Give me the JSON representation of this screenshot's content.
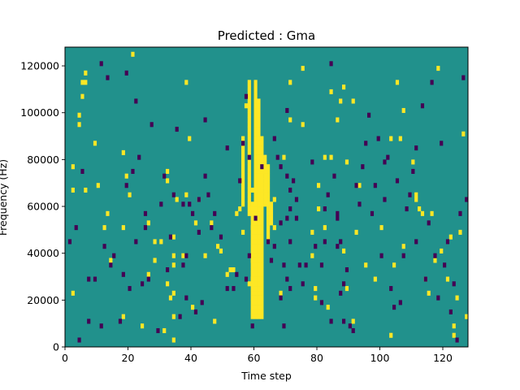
{
  "chart_data": {
    "type": "heatmap",
    "title": "Predicted : Gma",
    "xlabel": "Time step",
    "ylabel": "Frequency (Hz)",
    "xlim": [
      0,
      128
    ],
    "ylim": [
      0,
      128000
    ],
    "x_ticks": [
      0,
      20,
      40,
      60,
      80,
      100,
      120
    ],
    "y_ticks": [
      0,
      20000,
      40000,
      60000,
      80000,
      100000,
      120000
    ],
    "grid": false,
    "legend": "none",
    "n_time_steps": 128,
    "n_freq_bins": 64,
    "colors": {
      "background": "#21918c",
      "high": "#fde725",
      "low": "#440154"
    },
    "high_cells": [
      [
        2,
        11
      ],
      [
        2,
        33
      ],
      [
        2,
        38
      ],
      [
        4,
        47
      ],
      [
        4,
        49
      ],
      [
        5,
        56
      ],
      [
        5,
        53
      ],
      [
        6,
        56
      ],
      [
        6,
        58
      ],
      [
        6,
        33
      ],
      [
        9,
        43
      ],
      [
        10,
        34
      ],
      [
        12,
        25
      ],
      [
        13,
        28
      ],
      [
        14,
        18
      ],
      [
        18,
        41
      ],
      [
        18,
        25
      ],
      [
        18,
        6
      ],
      [
        19,
        36
      ],
      [
        20,
        32
      ],
      [
        21,
        62
      ],
      [
        24,
        4
      ],
      [
        26,
        26
      ],
      [
        26,
        15
      ],
      [
        28,
        18
      ],
      [
        28,
        22
      ],
      [
        30,
        22
      ],
      [
        31,
        3
      ],
      [
        32,
        13
      ],
      [
        32,
        35
      ],
      [
        32,
        37
      ],
      [
        33,
        10
      ],
      [
        34,
        17
      ],
      [
        34,
        19
      ],
      [
        34,
        11
      ],
      [
        34,
        6
      ],
      [
        34,
        23
      ],
      [
        34,
        1
      ],
      [
        35,
        31
      ],
      [
        37,
        19
      ],
      [
        38,
        56
      ],
      [
        38,
        32
      ],
      [
        39,
        44
      ],
      [
        40,
        8
      ],
      [
        41,
        26
      ],
      [
        42,
        31
      ],
      [
        44,
        19
      ],
      [
        46,
        26
      ],
      [
        47,
        5
      ],
      [
        48,
        21
      ],
      [
        49,
        20
      ],
      [
        51,
        15
      ],
      [
        52,
        16
      ],
      [
        53,
        16
      ],
      [
        54,
        28
      ],
      [
        55,
        29
      ],
      [
        56,
        24
      ],
      [
        57,
        51
      ],
      [
        58,
        13
      ],
      [
        59,
        14
      ],
      [
        59,
        18
      ],
      [
        59,
        25
      ],
      [
        59,
        29
      ],
      [
        59,
        33
      ],
      [
        60,
        30
      ],
      [
        60,
        35
      ],
      [
        60,
        39
      ],
      [
        60,
        43
      ],
      [
        61,
        43
      ],
      [
        62,
        37
      ],
      [
        64,
        25
      ],
      [
        66,
        25
      ],
      [
        66,
        31
      ],
      [
        68,
        11
      ],
      [
        69,
        40
      ],
      [
        71,
        48
      ],
      [
        71,
        56
      ],
      [
        75,
        47
      ],
      [
        75,
        59
      ],
      [
        75,
        64
      ],
      [
        78,
        24
      ],
      [
        78,
        19
      ],
      [
        79,
        12
      ],
      [
        79,
        10
      ],
      [
        80,
        29
      ],
      [
        80,
        34
      ],
      [
        82,
        25
      ],
      [
        82,
        40
      ],
      [
        83,
        8
      ],
      [
        84,
        40
      ],
      [
        84,
        54
      ],
      [
        86,
        48
      ],
      [
        87,
        52
      ],
      [
        88,
        55
      ],
      [
        88,
        20
      ],
      [
        89,
        39
      ],
      [
        89,
        12
      ],
      [
        91,
        52
      ],
      [
        91,
        5
      ],
      [
        92,
        24
      ],
      [
        93,
        34
      ],
      [
        95,
        17
      ],
      [
        98,
        14
      ],
      [
        100,
        25
      ],
      [
        103,
        2
      ],
      [
        103,
        44
      ],
      [
        104,
        17
      ],
      [
        105,
        56
      ],
      [
        106,
        44
      ],
      [
        107,
        21
      ],
      [
        107,
        50
      ],
      [
        110,
        39
      ],
      [
        111,
        31
      ],
      [
        111,
        32
      ],
      [
        112,
        29
      ],
      [
        113,
        28
      ],
      [
        114,
        14
      ],
      [
        115,
        11
      ],
      [
        116,
        28
      ],
      [
        117,
        18
      ],
      [
        118,
        59
      ],
      [
        119,
        20
      ],
      [
        121,
        14
      ],
      [
        122,
        23
      ],
      [
        123,
        2
      ],
      [
        123,
        4
      ],
      [
        124,
        10
      ],
      [
        125,
        24
      ],
      [
        126,
        45
      ],
      [
        127,
        64
      ],
      [
        127,
        6
      ]
    ],
    "high_columns": [
      {
        "x": 56,
        "y_from": 30,
        "y_to": 44
      },
      {
        "x": 58,
        "y_from": 28,
        "y_to": 56
      },
      {
        "x": 59,
        "y_from": 6,
        "y_to": 30
      },
      {
        "x": 60,
        "y_from": 6,
        "y_to": 56
      },
      {
        "x": 61,
        "y_from": 6,
        "y_to": 52
      },
      {
        "x": 62,
        "y_from": 6,
        "y_to": 44
      },
      {
        "x": 63,
        "y_from": 30,
        "y_to": 40
      },
      {
        "x": 64,
        "y_from": 22,
        "y_to": 38
      },
      {
        "x": 65,
        "y_from": 26,
        "y_to": 30
      }
    ],
    "low_cells": [
      [
        1,
        22
      ],
      [
        3,
        25
      ],
      [
        4,
        1
      ],
      [
        5,
        37
      ],
      [
        7,
        5
      ],
      [
        7,
        14
      ],
      [
        9,
        14
      ],
      [
        11,
        60
      ],
      [
        11,
        4
      ],
      [
        12,
        21
      ],
      [
        13,
        57
      ],
      [
        14,
        17
      ],
      [
        15,
        19
      ],
      [
        17,
        5
      ],
      [
        18,
        15
      ],
      [
        19,
        34
      ],
      [
        19,
        58
      ],
      [
        20,
        12
      ],
      [
        21,
        37
      ],
      [
        22,
        52
      ],
      [
        22,
        22
      ],
      [
        23,
        40
      ],
      [
        24,
        13
      ],
      [
        25,
        25
      ],
      [
        25,
        28
      ],
      [
        26,
        14
      ],
      [
        27,
        47
      ],
      [
        29,
        3
      ],
      [
        30,
        30
      ],
      [
        31,
        36
      ],
      [
        32,
        16
      ],
      [
        33,
        23
      ],
      [
        34,
        32
      ],
      [
        35,
        46
      ],
      [
        36,
        6
      ],
      [
        37,
        17
      ],
      [
        37,
        30
      ],
      [
        38,
        10
      ],
      [
        38,
        19
      ],
      [
        39,
        30
      ],
      [
        40,
        28
      ],
      [
        41,
        7
      ],
      [
        42,
        31
      ],
      [
        42,
        24
      ],
      [
        43,
        9
      ],
      [
        44,
        36
      ],
      [
        44,
        48
      ],
      [
        45,
        32
      ],
      [
        46,
        25
      ],
      [
        47,
        28
      ],
      [
        49,
        23
      ],
      [
        51,
        12
      ],
      [
        51,
        42
      ],
      [
        53,
        12
      ],
      [
        54,
        15
      ],
      [
        55,
        35
      ],
      [
        56,
        43
      ],
      [
        57,
        53
      ],
      [
        57,
        14
      ],
      [
        58,
        19
      ],
      [
        58,
        40
      ],
      [
        59,
        4
      ],
      [
        60,
        27
      ],
      [
        62,
        38
      ],
      [
        64,
        22
      ],
      [
        65,
        18
      ],
      [
        66,
        21
      ],
      [
        66,
        44
      ],
      [
        67,
        40
      ],
      [
        68,
        10
      ],
      [
        68,
        26
      ],
      [
        68,
        38
      ],
      [
        69,
        4
      ],
      [
        69,
        17
      ],
      [
        70,
        14
      ],
      [
        70,
        27
      ],
      [
        70,
        36
      ],
      [
        70,
        50
      ],
      [
        71,
        22
      ],
      [
        71,
        29
      ],
      [
        71,
        33
      ],
      [
        71,
        12
      ],
      [
        72,
        35
      ],
      [
        73,
        31
      ],
      [
        73,
        27
      ],
      [
        74,
        17
      ],
      [
        75,
        13
      ],
      [
        76,
        17
      ],
      [
        78,
        39
      ],
      [
        79,
        21
      ],
      [
        81,
        9
      ],
      [
        81,
        17
      ],
      [
        82,
        22
      ],
      [
        82,
        29
      ],
      [
        83,
        32
      ],
      [
        84,
        5
      ],
      [
        84,
        60
      ],
      [
        85,
        36
      ],
      [
        86,
        27
      ],
      [
        86,
        28
      ],
      [
        86,
        21
      ],
      [
        87,
        22
      ],
      [
        87,
        11
      ],
      [
        88,
        13
      ],
      [
        88,
        5
      ],
      [
        89,
        16
      ],
      [
        90,
        4
      ],
      [
        91,
        3
      ],
      [
        92,
        34
      ],
      [
        93,
        30
      ],
      [
        94,
        38
      ],
      [
        95,
        43
      ],
      [
        96,
        49
      ],
      [
        97,
        28
      ],
      [
        98,
        34
      ],
      [
        99,
        44
      ],
      [
        100,
        19
      ],
      [
        101,
        31
      ],
      [
        101,
        39
      ],
      [
        102,
        40
      ],
      [
        103,
        12
      ],
      [
        104,
        8
      ],
      [
        105,
        35
      ],
      [
        106,
        9
      ],
      [
        107,
        19
      ],
      [
        108,
        29
      ],
      [
        109,
        32
      ],
      [
        110,
        37
      ],
      [
        111,
        42
      ],
      [
        111,
        22
      ],
      [
        113,
        51
      ],
      [
        114,
        14
      ],
      [
        115,
        26
      ],
      [
        116,
        56
      ],
      [
        117,
        19
      ],
      [
        118,
        10
      ],
      [
        119,
        43
      ],
      [
        120,
        17
      ],
      [
        121,
        22
      ],
      [
        122,
        7
      ],
      [
        123,
        13
      ],
      [
        124,
        1
      ],
      [
        125,
        28
      ],
      [
        126,
        57
      ],
      [
        127,
        31
      ]
    ]
  }
}
